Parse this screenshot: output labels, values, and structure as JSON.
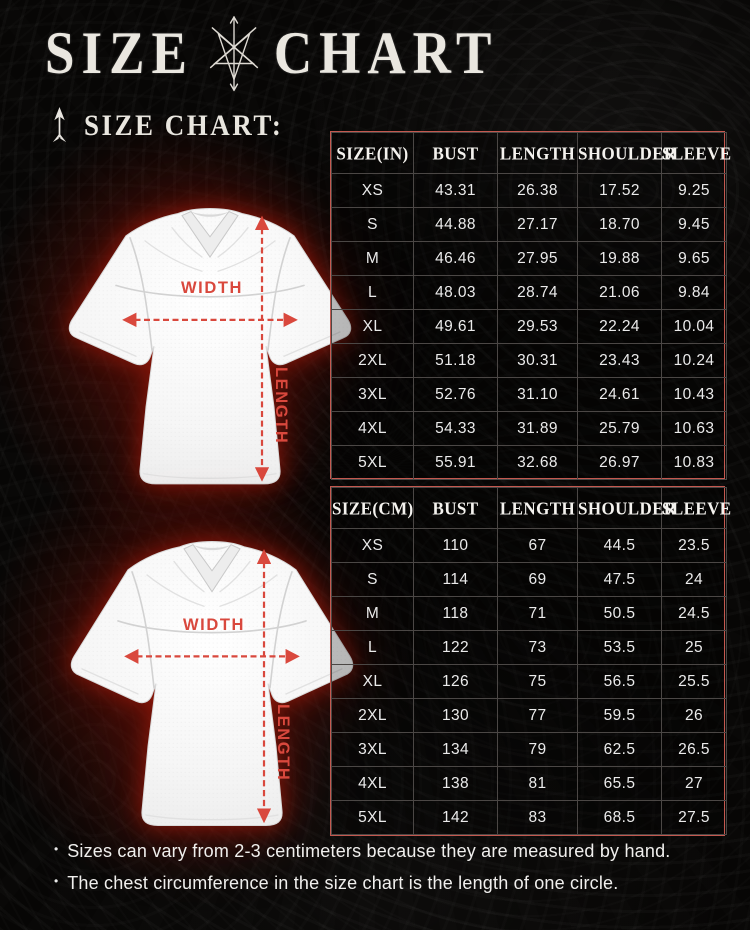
{
  "header": {
    "title_left": "SIZE",
    "title_right": "CHART",
    "subheading": "SIZE CHART:"
  },
  "diagram": {
    "width_label": "WIDTH",
    "length_label": "LENGTH"
  },
  "icons": {
    "title_sigil": "chaos-star-sigil",
    "subheading_marker": "spear-arrow",
    "measure_arrows": "double-headed-dashed-arrow"
  },
  "colors": {
    "accent_red": "#d9483d",
    "table_border": "#c4584f",
    "background": "#070605",
    "text": "#f0efed",
    "shirt": "#f6f6f6"
  },
  "footer": {
    "bullet": "•",
    "notes": [
      "Sizes can vary from 2-3 centimeters because they are measured by hand.",
      "The chest circumference in the size chart is the length of one circle."
    ]
  },
  "chart_data": [
    {
      "type": "table",
      "title": "SIZE(IN)",
      "columns": [
        "SIZE(IN)",
        "BUST",
        "LENGTH",
        "SHOULDER",
        "SLEEVE"
      ],
      "rows": [
        [
          "XS",
          "43.31",
          "26.38",
          "17.52",
          "9.25"
        ],
        [
          "S",
          "44.88",
          "27.17",
          "18.70",
          "9.45"
        ],
        [
          "M",
          "46.46",
          "27.95",
          "19.88",
          "9.65"
        ],
        [
          "L",
          "48.03",
          "28.74",
          "21.06",
          "9.84"
        ],
        [
          "XL",
          "49.61",
          "29.53",
          "22.24",
          "10.04"
        ],
        [
          "2XL",
          "51.18",
          "30.31",
          "23.43",
          "10.24"
        ],
        [
          "3XL",
          "52.76",
          "31.10",
          "24.61",
          "10.43"
        ],
        [
          "4XL",
          "54.33",
          "31.89",
          "25.79",
          "10.63"
        ],
        [
          "5XL",
          "55.91",
          "32.68",
          "26.97",
          "10.83"
        ]
      ]
    },
    {
      "type": "table",
      "title": "SIZE(CM)",
      "columns": [
        "SIZE(CM)",
        "BUST",
        "LENGTH",
        "SHOULDER",
        "SLEEVE"
      ],
      "rows": [
        [
          "XS",
          "110",
          "67",
          "44.5",
          "23.5"
        ],
        [
          "S",
          "114",
          "69",
          "47.5",
          "24"
        ],
        [
          "M",
          "118",
          "71",
          "50.5",
          "24.5"
        ],
        [
          "L",
          "122",
          "73",
          "53.5",
          "25"
        ],
        [
          "XL",
          "126",
          "75",
          "56.5",
          "25.5"
        ],
        [
          "2XL",
          "130",
          "77",
          "59.5",
          "26"
        ],
        [
          "3XL",
          "134",
          "79",
          "62.5",
          "26.5"
        ],
        [
          "4XL",
          "138",
          "81",
          "65.5",
          "27"
        ],
        [
          "5XL",
          "142",
          "83",
          "68.5",
          "27.5"
        ]
      ]
    }
  ]
}
